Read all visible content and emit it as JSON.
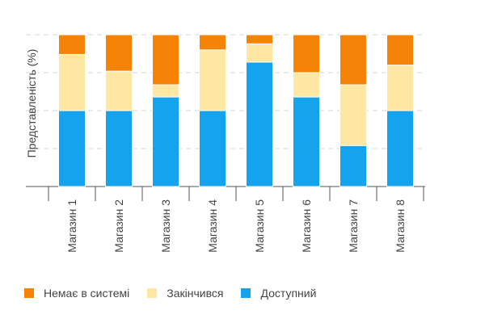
{
  "chart_data": {
    "type": "bar",
    "stacked": true,
    "ylabel": "Представленість (%)",
    "ylim": [
      0,
      100
    ],
    "grid": true,
    "legend_position": "bottom-left",
    "categories": [
      "Магазин 1",
      "Магазин 2",
      "Магазин 3",
      "Магазин 4",
      "Магазин 5",
      "Магазин 6",
      "Магазин 7",
      "Магазин 8"
    ],
    "series": [
      {
        "name": "Доступний",
        "color": "#14a3ec",
        "values": [
          50,
          50,
          59,
          50,
          82,
          59,
          27,
          50
        ]
      },
      {
        "name": "Закінчився",
        "color": "#fde7a2",
        "values": [
          37,
          26,
          8,
          40,
          12,
          16,
          40,
          30
        ]
      },
      {
        "name": "Немає в системі",
        "color": "#f48307",
        "values": [
          13,
          24,
          33,
          10,
          6,
          25,
          33,
          20
        ]
      }
    ]
  },
  "legend": [
    {
      "label": "Немає в системі",
      "color": "#f48307"
    },
    {
      "label": "Закінчився",
      "color": "#fde7a2"
    },
    {
      "label": "Доступний",
      "color": "#14a3ec"
    }
  ]
}
